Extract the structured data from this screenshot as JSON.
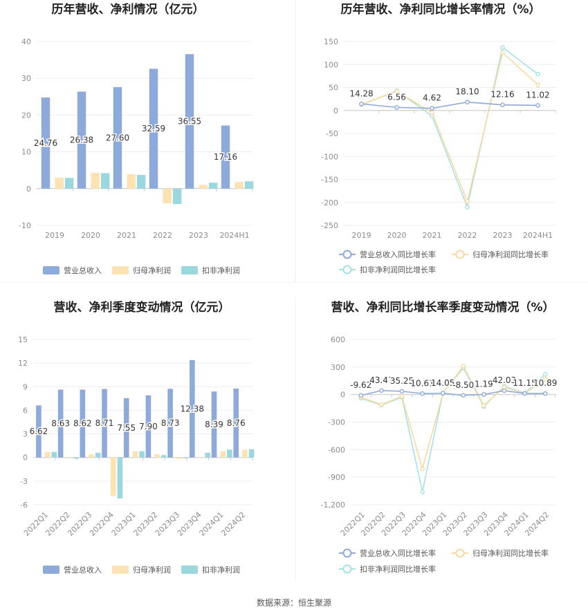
{
  "source_note": "数据来源：恒生聚源",
  "legends": {
    "bar": [
      "营业总收入",
      "归母净利润",
      "扣非净利润"
    ],
    "line": [
      "营业总收入同比增长率",
      "归母净利润同比增长率",
      "扣非净利润同比增长率"
    ]
  },
  "colors": {
    "revenue": "#8eaadb",
    "net_profit": "#fde3b4",
    "deducted": "#9ad8dd",
    "line_revenue": "#8eaadb",
    "line_net": "#fbd99e",
    "line_deducted": "#a5e2e6"
  },
  "chart_data": [
    {
      "type": "bar",
      "title": "历年营收、净利情况（亿元）",
      "categories": [
        "2019",
        "2020",
        "2021",
        "2022",
        "2023",
        "2024H1"
      ],
      "yticks": [
        "40",
        "30",
        "20",
        "10",
        "0",
        "-10"
      ],
      "ylim": [
        -10,
        40
      ],
      "series": [
        {
          "name": "营业总收入",
          "values": [
            24.76,
            26.38,
            27.6,
            32.59,
            36.55,
            17.16
          ]
        },
        {
          "name": "归母净利润",
          "values": [
            3.0,
            4.3,
            3.9,
            -4.0,
            1.0,
            1.8
          ]
        },
        {
          "name": "扣非净利润",
          "values": [
            2.9,
            4.2,
            3.7,
            -4.2,
            1.6,
            2.0
          ]
        }
      ],
      "data_labels": [
        "24.76",
        "26.38",
        "27.60",
        "32.59",
        "36.55",
        "17.16"
      ]
    },
    {
      "type": "line",
      "title": "历年营收、净利同比增长率情况（%）",
      "categories": [
        "2019",
        "2020",
        "2021",
        "2022",
        "2023",
        "2024H1"
      ],
      "yticks": [
        "150",
        "100",
        "50",
        "0",
        "-50",
        "-100",
        "-150",
        "-200",
        "-250"
      ],
      "ylim": [
        -250,
        150
      ],
      "series": [
        {
          "name": "营业总收入同比增长率",
          "values": [
            14.28,
            6.56,
            4.62,
            18.1,
            12.16,
            11.02
          ]
        },
        {
          "name": "归母净利润同比增长率",
          "values": [
            13,
            42,
            -5,
            -198,
            126,
            56
          ]
        },
        {
          "name": "扣非净利润同比增长率",
          "values": [
            12,
            43,
            -12,
            -210,
            137,
            79
          ]
        }
      ],
      "data_labels": [
        "14.28",
        "6.56",
        "4.62",
        "18.10",
        "12.16",
        "11.02"
      ]
    },
    {
      "type": "bar",
      "title": "营收、净利季度变动情况（亿元）",
      "categories": [
        "2022Q1",
        "2022Q2",
        "2022Q3",
        "2022Q4",
        "2023Q1",
        "2023Q2",
        "2023Q3",
        "2023Q4",
        "2024Q1",
        "2024Q2"
      ],
      "yticks": [
        "15",
        "12",
        "9",
        "6",
        "3",
        "0",
        "-3",
        "-6"
      ],
      "ylim": [
        -6,
        15
      ],
      "series": [
        {
          "name": "营业总收入",
          "values": [
            6.62,
            8.63,
            8.62,
            8.71,
            7.55,
            7.9,
            8.73,
            12.38,
            8.39,
            8.76
          ]
        },
        {
          "name": "归母净利润",
          "values": [
            0.7,
            -0.1,
            0.4,
            -4.9,
            0.8,
            0.4,
            -0.2,
            0.0,
            0.8,
            1.0
          ]
        },
        {
          "name": "扣非净利润",
          "values": [
            0.7,
            -0.15,
            0.6,
            -5.2,
            0.8,
            0.3,
            -0.1,
            0.6,
            1.0,
            1.05
          ]
        }
      ],
      "data_labels": [
        "6.62",
        "8.63",
        "8.62",
        "8.71",
        "7.55",
        "7.90",
        "8.73",
        "12.38",
        "8.39",
        "8.76"
      ]
    },
    {
      "type": "line",
      "title": "营收、净利同比增长率季度变动情况（%）",
      "categories": [
        "2022Q1",
        "2022Q2",
        "2022Q3",
        "2022Q4",
        "2023Q1",
        "2023Q2",
        "2023Q3",
        "2023Q4",
        "2024Q1",
        "2024Q2"
      ],
      "yticks": [
        "600",
        "300",
        "0",
        "-300",
        "-600",
        "-900",
        "-1,200"
      ],
      "ylim": [
        -1200,
        600
      ],
      "series": [
        {
          "name": "营业总收入同比增长率",
          "values": [
            -9.62,
            43.47,
            35.25,
            10.61,
            14.05,
            -8.5,
            1.19,
            42.03,
            11.15,
            10.89
          ]
        },
        {
          "name": "归母净利润同比增长率",
          "values": [
            -30,
            -110,
            -20,
            -810,
            10,
            310,
            -120,
            80,
            10,
            170
          ]
        },
        {
          "name": "扣非净利润同比增长率",
          "values": [
            -40,
            -115,
            -30,
            -1060,
            15,
            290,
            -130,
            90,
            15,
            220
          ]
        }
      ],
      "data_labels": [
        "-9.62",
        "43.47",
        "35.25",
        "10.61",
        "14.05",
        "-8.50",
        "1.19",
        "42.03",
        "11.15",
        "10.89"
      ]
    }
  ]
}
